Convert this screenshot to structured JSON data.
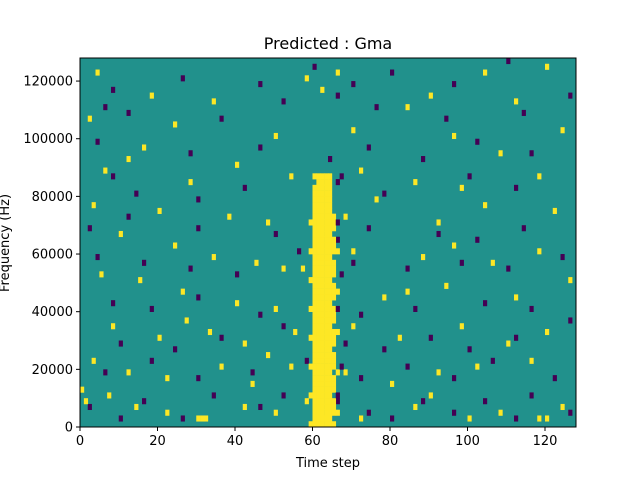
{
  "chart_data": {
    "type": "heatmap",
    "title": "Predicted : Gma",
    "xlabel": "Time step",
    "ylabel": "Frequency (Hz)",
    "xlim": [
      0,
      128
    ],
    "ylim": [
      0,
      128000
    ],
    "x_ticks": [
      0,
      20,
      40,
      60,
      80,
      100,
      120
    ],
    "x_tick_labels": [
      "0",
      "20",
      "40",
      "60",
      "80",
      "100",
      "120"
    ],
    "y_ticks": [
      0,
      20000,
      40000,
      60000,
      80000,
      100000,
      120000
    ],
    "y_tick_labels": [
      "0",
      "20000",
      "40000",
      "60000",
      "80000",
      "100000",
      "120000"
    ],
    "grid": false,
    "colormap": "viridis",
    "background_value": 0.5,
    "n_time_steps": 128,
    "n_freq_bins": 64,
    "freq_bin_width_hz": 2000,
    "colors": {
      "background": "#21918c",
      "high": "#fde725",
      "low": "#440154"
    },
    "high_band": {
      "time_steps": [
        59,
        66
      ],
      "freq_range_hz": [
        0,
        88000
      ]
    },
    "yellow_cells": [
      [
        4,
        122000
      ],
      [
        18,
        114000
      ],
      [
        34,
        112000
      ],
      [
        58,
        120000
      ],
      [
        62,
        116000
      ],
      [
        66,
        122000
      ],
      [
        84,
        110000
      ],
      [
        90,
        114000
      ],
      [
        104,
        122000
      ],
      [
        112,
        112000
      ],
      [
        120,
        124000
      ],
      [
        2,
        106000
      ],
      [
        16,
        96000
      ],
      [
        24,
        104000
      ],
      [
        50,
        100000
      ],
      [
        70,
        102000
      ],
      [
        96,
        100000
      ],
      [
        108,
        94000
      ],
      [
        124,
        102000
      ],
      [
        6,
        88000
      ],
      [
        12,
        92000
      ],
      [
        28,
        84000
      ],
      [
        40,
        90000
      ],
      [
        54,
        86000
      ],
      [
        72,
        88000
      ],
      [
        86,
        84000
      ],
      [
        98,
        82000
      ],
      [
        118,
        86000
      ],
      [
        3,
        76000
      ],
      [
        20,
        74000
      ],
      [
        38,
        72000
      ],
      [
        48,
        70000
      ],
      [
        68,
        72000
      ],
      [
        76,
        78000
      ],
      [
        92,
        70000
      ],
      [
        104,
        76000
      ],
      [
        122,
        74000
      ],
      [
        10,
        66000
      ],
      [
        24,
        62000
      ],
      [
        34,
        58000
      ],
      [
        45,
        56000
      ],
      [
        52,
        54000
      ],
      [
        57,
        54000
      ],
      [
        70,
        60000
      ],
      [
        88,
        58000
      ],
      [
        96,
        62000
      ],
      [
        106,
        56000
      ],
      [
        118,
        60000
      ],
      [
        5,
        52000
      ],
      [
        15,
        50000
      ],
      [
        26,
        46000
      ],
      [
        40,
        42000
      ],
      [
        50,
        40000
      ],
      [
        78,
        44000
      ],
      [
        84,
        46000
      ],
      [
        94,
        48000
      ],
      [
        112,
        44000
      ],
      [
        126,
        50000
      ],
      [
        8,
        34000
      ],
      [
        20,
        30000
      ],
      [
        27,
        36000
      ],
      [
        33,
        32000
      ],
      [
        42,
        28000
      ],
      [
        55,
        32000
      ],
      [
        70,
        34000
      ],
      [
        82,
        30000
      ],
      [
        98,
        34000
      ],
      [
        110,
        28000
      ],
      [
        120,
        32000
      ],
      [
        3,
        22000
      ],
      [
        12,
        18000
      ],
      [
        22,
        16000
      ],
      [
        36,
        20000
      ],
      [
        48,
        24000
      ],
      [
        54,
        20000
      ],
      [
        68,
        18000
      ],
      [
        80,
        14000
      ],
      [
        92,
        18000
      ],
      [
        102,
        20000
      ],
      [
        116,
        22000
      ],
      [
        0,
        12000
      ],
      [
        1,
        8000
      ],
      [
        7,
        10000
      ],
      [
        14,
        6000
      ],
      [
        22,
        4000
      ],
      [
        30,
        2000
      ],
      [
        31,
        2000
      ],
      [
        32,
        2000
      ],
      [
        42,
        6000
      ],
      [
        50,
        4000
      ],
      [
        58,
        8000
      ],
      [
        72,
        2000
      ],
      [
        86,
        6000
      ],
      [
        90,
        10000
      ],
      [
        100,
        2000
      ],
      [
        108,
        4000
      ],
      [
        118,
        2000
      ],
      [
        120,
        2000
      ],
      [
        124,
        6000
      ],
      [
        44,
        14000
      ],
      [
        62,
        2000
      ],
      [
        63,
        2000
      ]
    ],
    "purple_cells": [
      [
        8,
        116000
      ],
      [
        26,
        120000
      ],
      [
        46,
        118000
      ],
      [
        60,
        124000
      ],
      [
        70,
        118000
      ],
      [
        80,
        122000
      ],
      [
        96,
        118000
      ],
      [
        110,
        126000
      ],
      [
        6,
        110000
      ],
      [
        12,
        108000
      ],
      [
        36,
        106000
      ],
      [
        52,
        112000
      ],
      [
        66,
        114000
      ],
      [
        76,
        110000
      ],
      [
        94,
        106000
      ],
      [
        114,
        108000
      ],
      [
        126,
        114000
      ],
      [
        4,
        98000
      ],
      [
        28,
        94000
      ],
      [
        46,
        96000
      ],
      [
        64,
        92000
      ],
      [
        74,
        96000
      ],
      [
        88,
        92000
      ],
      [
        102,
        98000
      ],
      [
        116,
        94000
      ],
      [
        8,
        86000
      ],
      [
        14,
        80000
      ],
      [
        30,
        78000
      ],
      [
        42,
        82000
      ],
      [
        66,
        84000
      ],
      [
        78,
        80000
      ],
      [
        100,
        86000
      ],
      [
        112,
        82000
      ],
      [
        2,
        68000
      ],
      [
        12,
        72000
      ],
      [
        30,
        68000
      ],
      [
        50,
        66000
      ],
      [
        66,
        64000
      ],
      [
        74,
        68000
      ],
      [
        92,
        66000
      ],
      [
        102,
        64000
      ],
      [
        114,
        68000
      ],
      [
        4,
        58000
      ],
      [
        16,
        56000
      ],
      [
        28,
        54000
      ],
      [
        40,
        52000
      ],
      [
        56,
        60000
      ],
      [
        70,
        56000
      ],
      [
        84,
        54000
      ],
      [
        98,
        56000
      ],
      [
        110,
        54000
      ],
      [
        124,
        58000
      ],
      [
        8,
        42000
      ],
      [
        18,
        40000
      ],
      [
        30,
        44000
      ],
      [
        46,
        38000
      ],
      [
        60,
        40000
      ],
      [
        72,
        38000
      ],
      [
        86,
        40000
      ],
      [
        104,
        42000
      ],
      [
        116,
        40000
      ],
      [
        10,
        28000
      ],
      [
        24,
        26000
      ],
      [
        36,
        30000
      ],
      [
        52,
        34000
      ],
      [
        68,
        28000
      ],
      [
        78,
        26000
      ],
      [
        90,
        30000
      ],
      [
        100,
        26000
      ],
      [
        112,
        30000
      ],
      [
        126,
        36000
      ],
      [
        6,
        18000
      ],
      [
        18,
        22000
      ],
      [
        30,
        16000
      ],
      [
        44,
        18000
      ],
      [
        58,
        22000
      ],
      [
        72,
        16000
      ],
      [
        84,
        20000
      ],
      [
        96,
        16000
      ],
      [
        106,
        22000
      ],
      [
        122,
        16000
      ],
      [
        2,
        6000
      ],
      [
        10,
        2000
      ],
      [
        16,
        8000
      ],
      [
        26,
        2000
      ],
      [
        34,
        10000
      ],
      [
        46,
        6000
      ],
      [
        52,
        10000
      ],
      [
        66,
        8000
      ],
      [
        74,
        4000
      ],
      [
        80,
        2000
      ],
      [
        88,
        8000
      ],
      [
        96,
        4000
      ],
      [
        104,
        8000
      ],
      [
        112,
        2000
      ],
      [
        116,
        10000
      ],
      [
        126,
        4000
      ]
    ]
  }
}
